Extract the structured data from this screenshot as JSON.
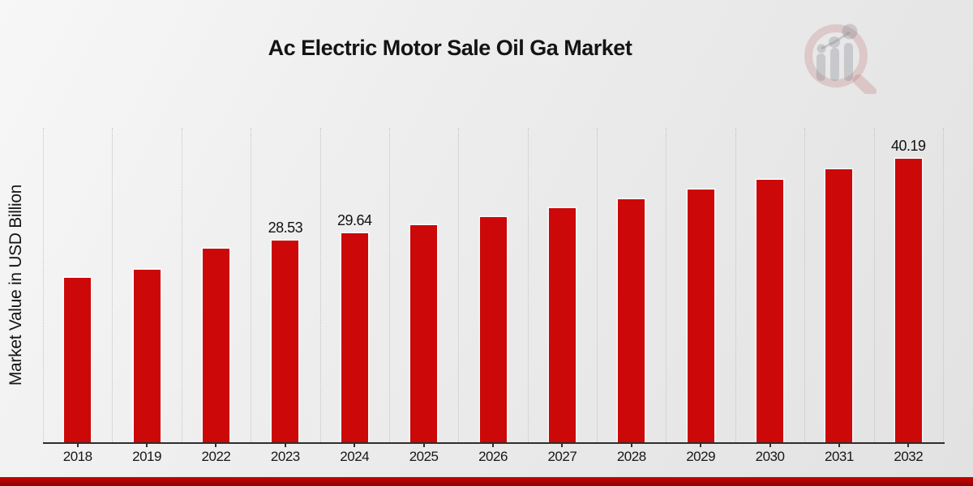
{
  "header": {
    "title": "Ac Electric Motor Sale Oil Ga Market"
  },
  "colors": {
    "bar": "#cc0808",
    "banner_top": "#c90404",
    "banner_bottom": "#8e0101",
    "gridline": "#c3c3c3",
    "axis": "#2e2e2e",
    "watermark_red": "rgba(178,80,80,0.22)",
    "watermark_gray": "rgba(125,130,140,0.30)"
  },
  "watermark": {
    "icon": "magnifier-growth-chart-logo"
  },
  "chart_data": {
    "type": "bar",
    "title": "Ac Electric Motor Sale Oil Ga Market",
    "xlabel": "",
    "ylabel": "Market Value in USD Billion",
    "categories": [
      "2018",
      "2019",
      "2022",
      "2023",
      "2024",
      "2025",
      "2026",
      "2027",
      "2028",
      "2029",
      "2030",
      "2031",
      "2032"
    ],
    "values": [
      23.3,
      24.4,
      27.4,
      28.53,
      29.64,
      30.7,
      31.9,
      33.2,
      34.4,
      35.8,
      37.2,
      38.7,
      40.19
    ],
    "point_labels": {
      "2023": "28.53",
      "2024": "29.64",
      "2032": "40.19"
    },
    "ylim": [
      0,
      44.5
    ],
    "grid": "vertical-dotted-between-categories",
    "legend": "none",
    "bar_color": "#cc0808"
  }
}
